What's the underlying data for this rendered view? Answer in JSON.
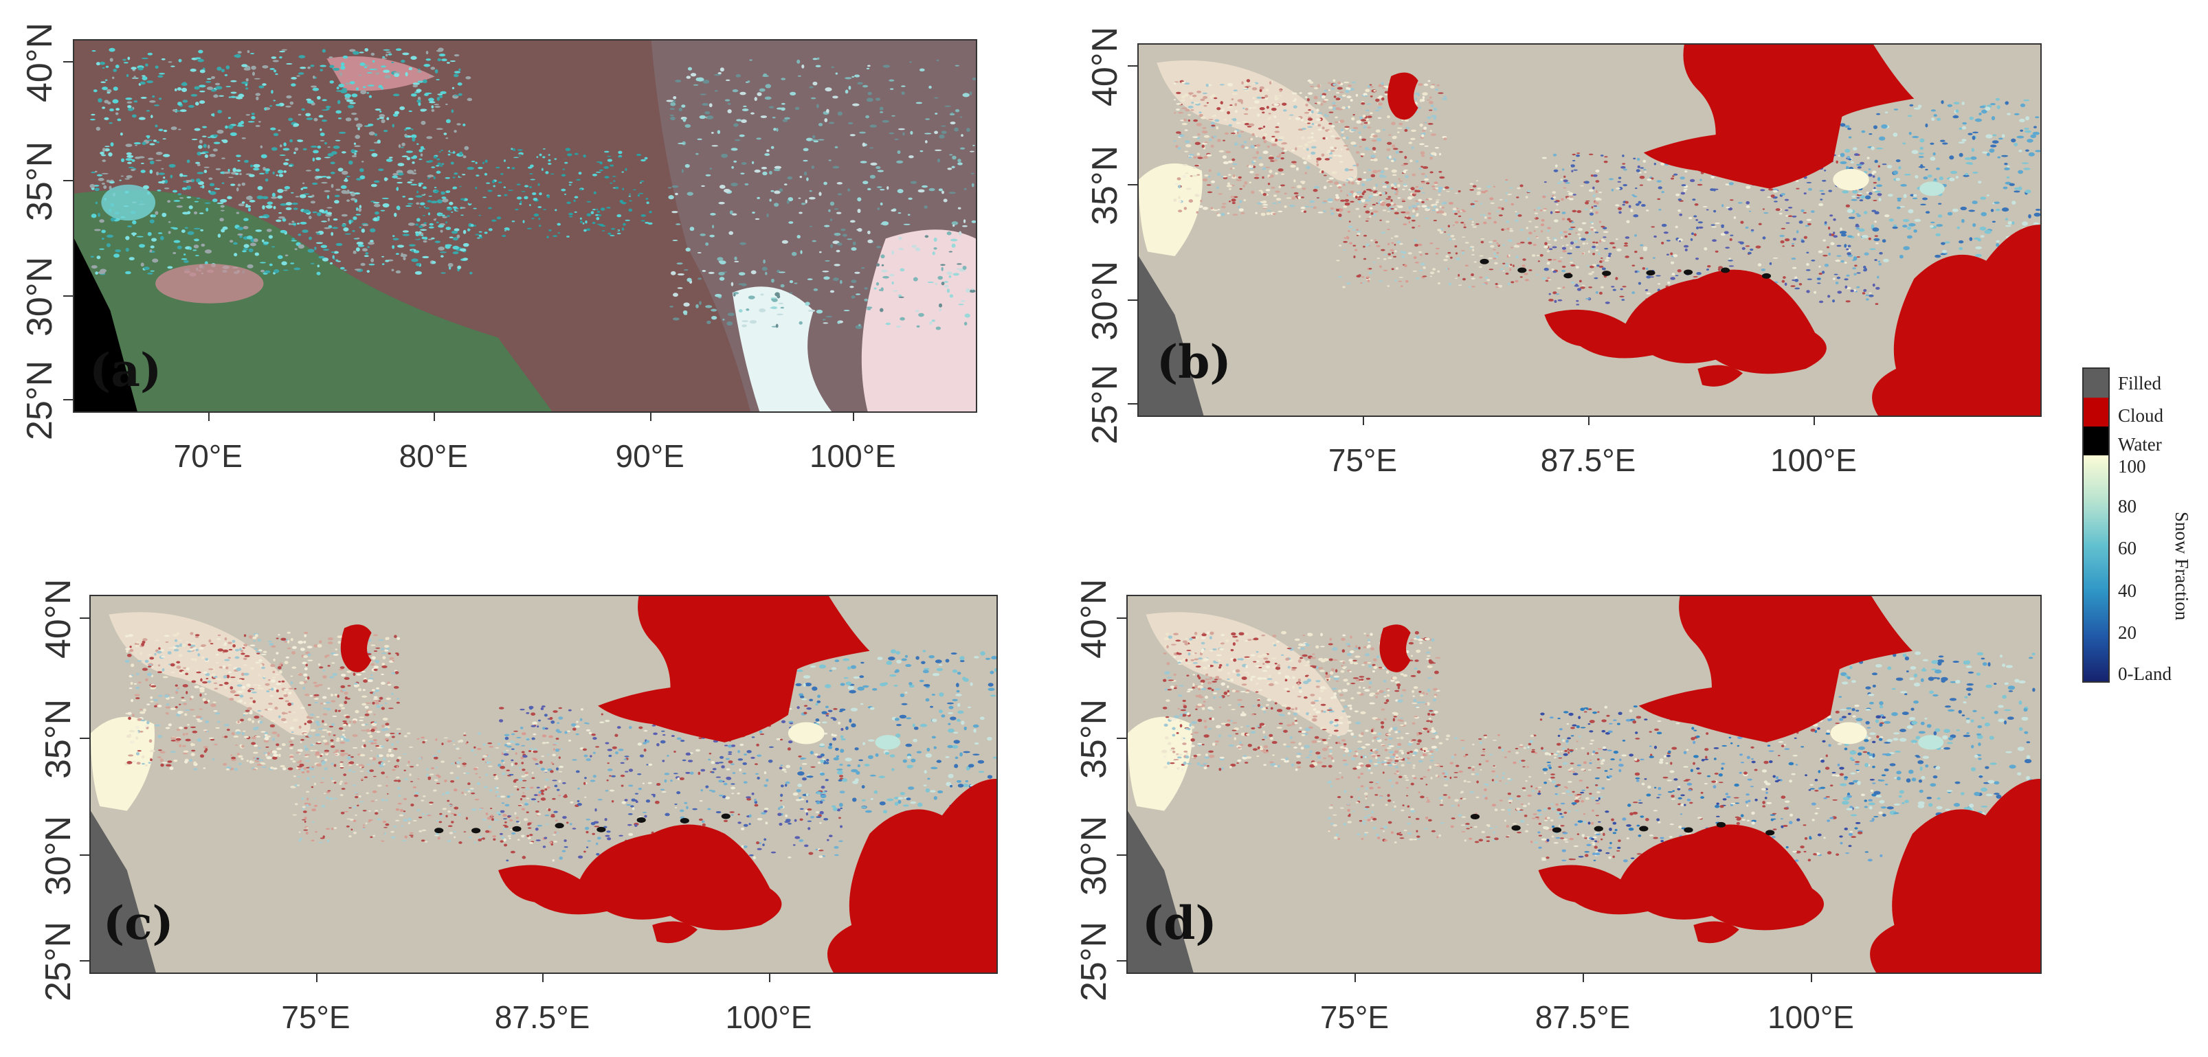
{
  "panels": [
    {
      "label": "(a)",
      "y_ticks": [
        "40°N",
        "35°N",
        "30°N",
        "25°N"
      ],
      "x_ticks": [
        "70°E",
        "80°E",
        "90°E",
        "100°E"
      ]
    },
    {
      "label": "(b)",
      "y_ticks": [
        "40°N",
        "35°N",
        "30°N",
        "25°N"
      ],
      "x_ticks": [
        "75°E",
        "87.5°E",
        "100°E"
      ]
    },
    {
      "label": "(c)",
      "y_ticks": [
        "40°N",
        "35°N",
        "30°N",
        "25°N"
      ],
      "x_ticks": [
        "75°E",
        "87.5°E",
        "100°E"
      ]
    },
    {
      "label": "(d)",
      "y_ticks": [
        "40°N",
        "35°N",
        "30°N",
        "25°N"
      ],
      "x_ticks": [
        "75°E",
        "87.5°E",
        "100°E"
      ]
    }
  ],
  "legend": {
    "categories": [
      {
        "label": "Filled",
        "color": "#5e5e5e"
      },
      {
        "label": "Cloud",
        "color": "#c00000"
      },
      {
        "label": "Water",
        "color": "#000000"
      }
    ],
    "scale_labels": [
      "100",
      "80",
      "60",
      "40",
      "20",
      "0-Land"
    ],
    "scale_colors": [
      "#fbfbd6",
      "#b8e3d0",
      "#62c1cf",
      "#2f96c6",
      "#2059a8",
      "#16226e"
    ],
    "title": "Snow Fraction"
  },
  "colors": {
    "land": "#c8c3b4",
    "cloud": "#c40a0a",
    "filled": "#5f5f5f",
    "snow_light": "#f8f5d8",
    "snow_mid": "#7fc5d3",
    "snow_blue": "#3a73b8",
    "rgb_brown": "#7a5654",
    "rgb_cyan": "#59d4d6",
    "rgb_green": "#4f7a52",
    "rgb_pink": "#c88b91"
  }
}
